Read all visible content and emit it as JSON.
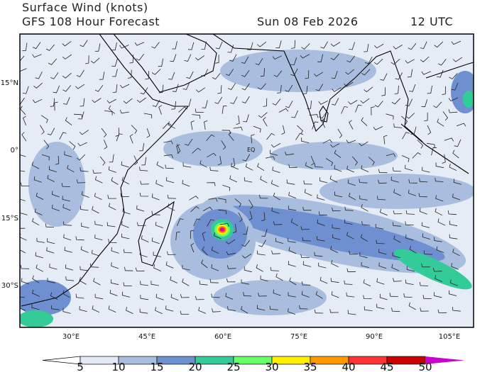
{
  "header": {
    "title": "Surface Wind (knots)",
    "subtitle": "GFS 108 Hour Forecast",
    "date": "Sun 08 Feb 2026",
    "time": "12 UTC"
  },
  "map": {
    "region": "Indian Ocean",
    "longitude_labels": [
      "30°E",
      "45°E",
      "60°E",
      "75°E",
      "90°E",
      "105°E"
    ],
    "latitude_labels": [
      "15°N",
      "0°",
      "15°S",
      "30°S"
    ],
    "equator_label": "EQ"
  },
  "colorbar": {
    "labels": [
      "5",
      "10",
      "15",
      "20",
      "25",
      "30",
      "35",
      "40",
      "45",
      "50"
    ],
    "colors": [
      "#ffffff",
      "#e3eaf5",
      "#a9bede",
      "#6f90d0",
      "#33cc99",
      "#66ff66",
      "#ffee00",
      "#ff9900",
      "#ff3333",
      "#cc0000",
      "#cc00cc"
    ]
  }
}
